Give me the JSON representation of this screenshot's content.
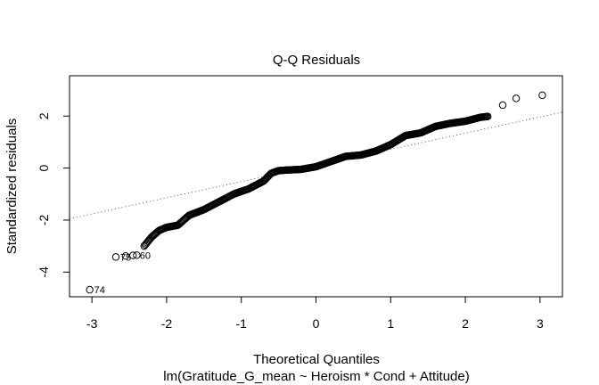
{
  "chart_data": {
    "type": "scatter",
    "title": "Q-Q Residuals",
    "xlabel": "Theoretical Quantiles",
    "ylabel": "Standardized residuals",
    "subtitle": "lm(Gratitude_G_mean ~ Heroism * Cond + Attitude)",
    "xlim": [
      -3.3,
      3.3
    ],
    "ylim": [
      -4.95,
      3.55
    ],
    "xticks": [
      -3,
      -2,
      -1,
      0,
      1,
      2,
      3
    ],
    "xtick_labels": [
      "-3",
      "-2",
      "-1",
      "0",
      "1",
      "2",
      "3"
    ],
    "yticks": [
      -4,
      -2,
      0,
      2
    ],
    "ytick_labels": [
      "-4",
      "-2",
      "0",
      "2"
    ],
    "grid": false,
    "reference_line": {
      "style": "dotted",
      "x": [
        -3.3,
        3.3
      ],
      "y": [
        -1.95,
        2.15
      ]
    },
    "labeled_points": [
      {
        "text": "74",
        "x": -3.03,
        "y": -4.68
      },
      {
        "text": "75",
        "x": -2.68,
        "y": -3.42
      },
      {
        "text": "60",
        "x": -2.42,
        "y": -3.36
      }
    ],
    "quantile_profile": {
      "sample_size": 360,
      "x": [
        -3.03,
        -2.68,
        -2.55,
        -2.45,
        -2.4,
        -2.3,
        -2.2,
        -2.1,
        -2.0,
        -1.85,
        -1.7,
        -1.5,
        -1.3,
        -1.1,
        -0.9,
        -0.7,
        -0.6,
        -0.5,
        -0.4,
        -0.2,
        0.0,
        0.2,
        0.4,
        0.6,
        0.8,
        1.0,
        1.2,
        1.4,
        1.6,
        1.8,
        2.0,
        2.2,
        2.35,
        2.5,
        2.68,
        3.03
      ],
      "y": [
        -4.68,
        -3.42,
        -3.38,
        -3.36,
        -3.35,
        -3.0,
        -2.65,
        -2.4,
        -2.28,
        -2.2,
        -1.82,
        -1.6,
        -1.3,
        -1.0,
        -0.8,
        -0.5,
        -0.2,
        -0.1,
        -0.08,
        -0.05,
        0.05,
        0.25,
        0.45,
        0.5,
        0.65,
        0.9,
        1.25,
        1.35,
        1.6,
        1.72,
        1.8,
        1.95,
        2.0,
        2.42,
        2.68,
        2.8
      ]
    }
  }
}
